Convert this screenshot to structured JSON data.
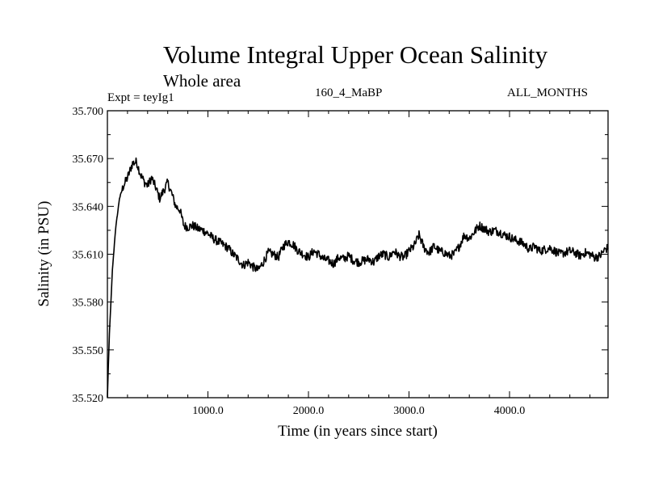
{
  "chart_data": {
    "type": "line",
    "title": "Volume Integral Upper Ocean Salinity",
    "subtitle": "Whole area",
    "labels": {
      "left": "Expt = teyIg1",
      "center": "160_4_MaBP",
      "right": "ALL_MONTHS"
    },
    "xlabel": "Time (in years since start)",
    "ylabel": "Salinity (in PSU)",
    "xlim": [
      0,
      4980
    ],
    "ylim": [
      35.52,
      35.7
    ],
    "xticks": [
      1000,
      2000,
      3000,
      4000
    ],
    "xtick_labels": [
      "1000.0",
      "2000.0",
      "3000.0",
      "4000.0"
    ],
    "yticks": [
      35.52,
      35.55,
      35.58,
      35.61,
      35.64,
      35.67,
      35.7
    ],
    "ytick_labels": [
      "35.520",
      "35.550",
      "35.580",
      "35.610",
      "35.640",
      "35.670",
      "35.700"
    ],
    "series": [
      {
        "name": "salinity",
        "color": "#000000",
        "x": [
          0,
          20,
          50,
          80,
          120,
          160,
          200,
          250,
          290,
          330,
          370,
          400,
          440,
          480,
          520,
          560,
          600,
          640,
          680,
          720,
          760,
          800,
          850,
          900,
          950,
          1000,
          1050,
          1100,
          1150,
          1200,
          1250,
          1300,
          1350,
          1400,
          1450,
          1500,
          1550,
          1600,
          1650,
          1700,
          1750,
          1800,
          1850,
          1900,
          1950,
          2000,
          2050,
          2100,
          2150,
          2200,
          2250,
          2300,
          2350,
          2400,
          2450,
          2500,
          2550,
          2600,
          2650,
          2700,
          2750,
          2800,
          2850,
          2900,
          2950,
          3000,
          3050,
          3100,
          3150,
          3200,
          3250,
          3300,
          3350,
          3400,
          3450,
          3500,
          3550,
          3600,
          3650,
          3700,
          3750,
          3800,
          3850,
          3900,
          3950,
          4000,
          4050,
          4100,
          4150,
          4200,
          4250,
          4300,
          4350,
          4400,
          4450,
          4500,
          4550,
          4600,
          4650,
          4700,
          4750,
          4800,
          4850,
          4900,
          4950,
          4980
        ],
        "y": [
          35.52,
          35.56,
          35.6,
          35.625,
          35.645,
          35.653,
          35.658,
          35.667,
          35.668,
          35.66,
          35.655,
          35.653,
          35.658,
          35.652,
          35.645,
          35.65,
          35.655,
          35.648,
          35.64,
          35.638,
          35.628,
          35.627,
          35.628,
          35.626,
          35.625,
          35.623,
          35.62,
          35.618,
          35.616,
          35.614,
          35.61,
          35.607,
          35.603,
          35.605,
          35.602,
          35.6,
          35.605,
          35.611,
          35.61,
          35.608,
          35.615,
          35.618,
          35.616,
          35.612,
          35.61,
          35.608,
          35.612,
          35.61,
          35.607,
          35.606,
          35.604,
          35.608,
          35.607,
          35.609,
          35.606,
          35.605,
          35.606,
          35.607,
          35.605,
          35.609,
          35.61,
          35.608,
          35.612,
          35.609,
          35.608,
          35.612,
          35.615,
          35.622,
          35.614,
          35.611,
          35.615,
          35.612,
          35.611,
          35.609,
          35.61,
          35.615,
          35.622,
          35.62,
          35.624,
          35.628,
          35.626,
          35.624,
          35.625,
          35.624,
          35.622,
          35.621,
          35.619,
          35.618,
          35.616,
          35.613,
          35.615,
          35.612,
          35.613,
          35.614,
          35.612,
          35.61,
          35.611,
          35.612,
          35.611,
          35.609,
          35.611,
          35.61,
          35.608,
          35.609,
          35.613,
          35.614
        ]
      }
    ]
  }
}
